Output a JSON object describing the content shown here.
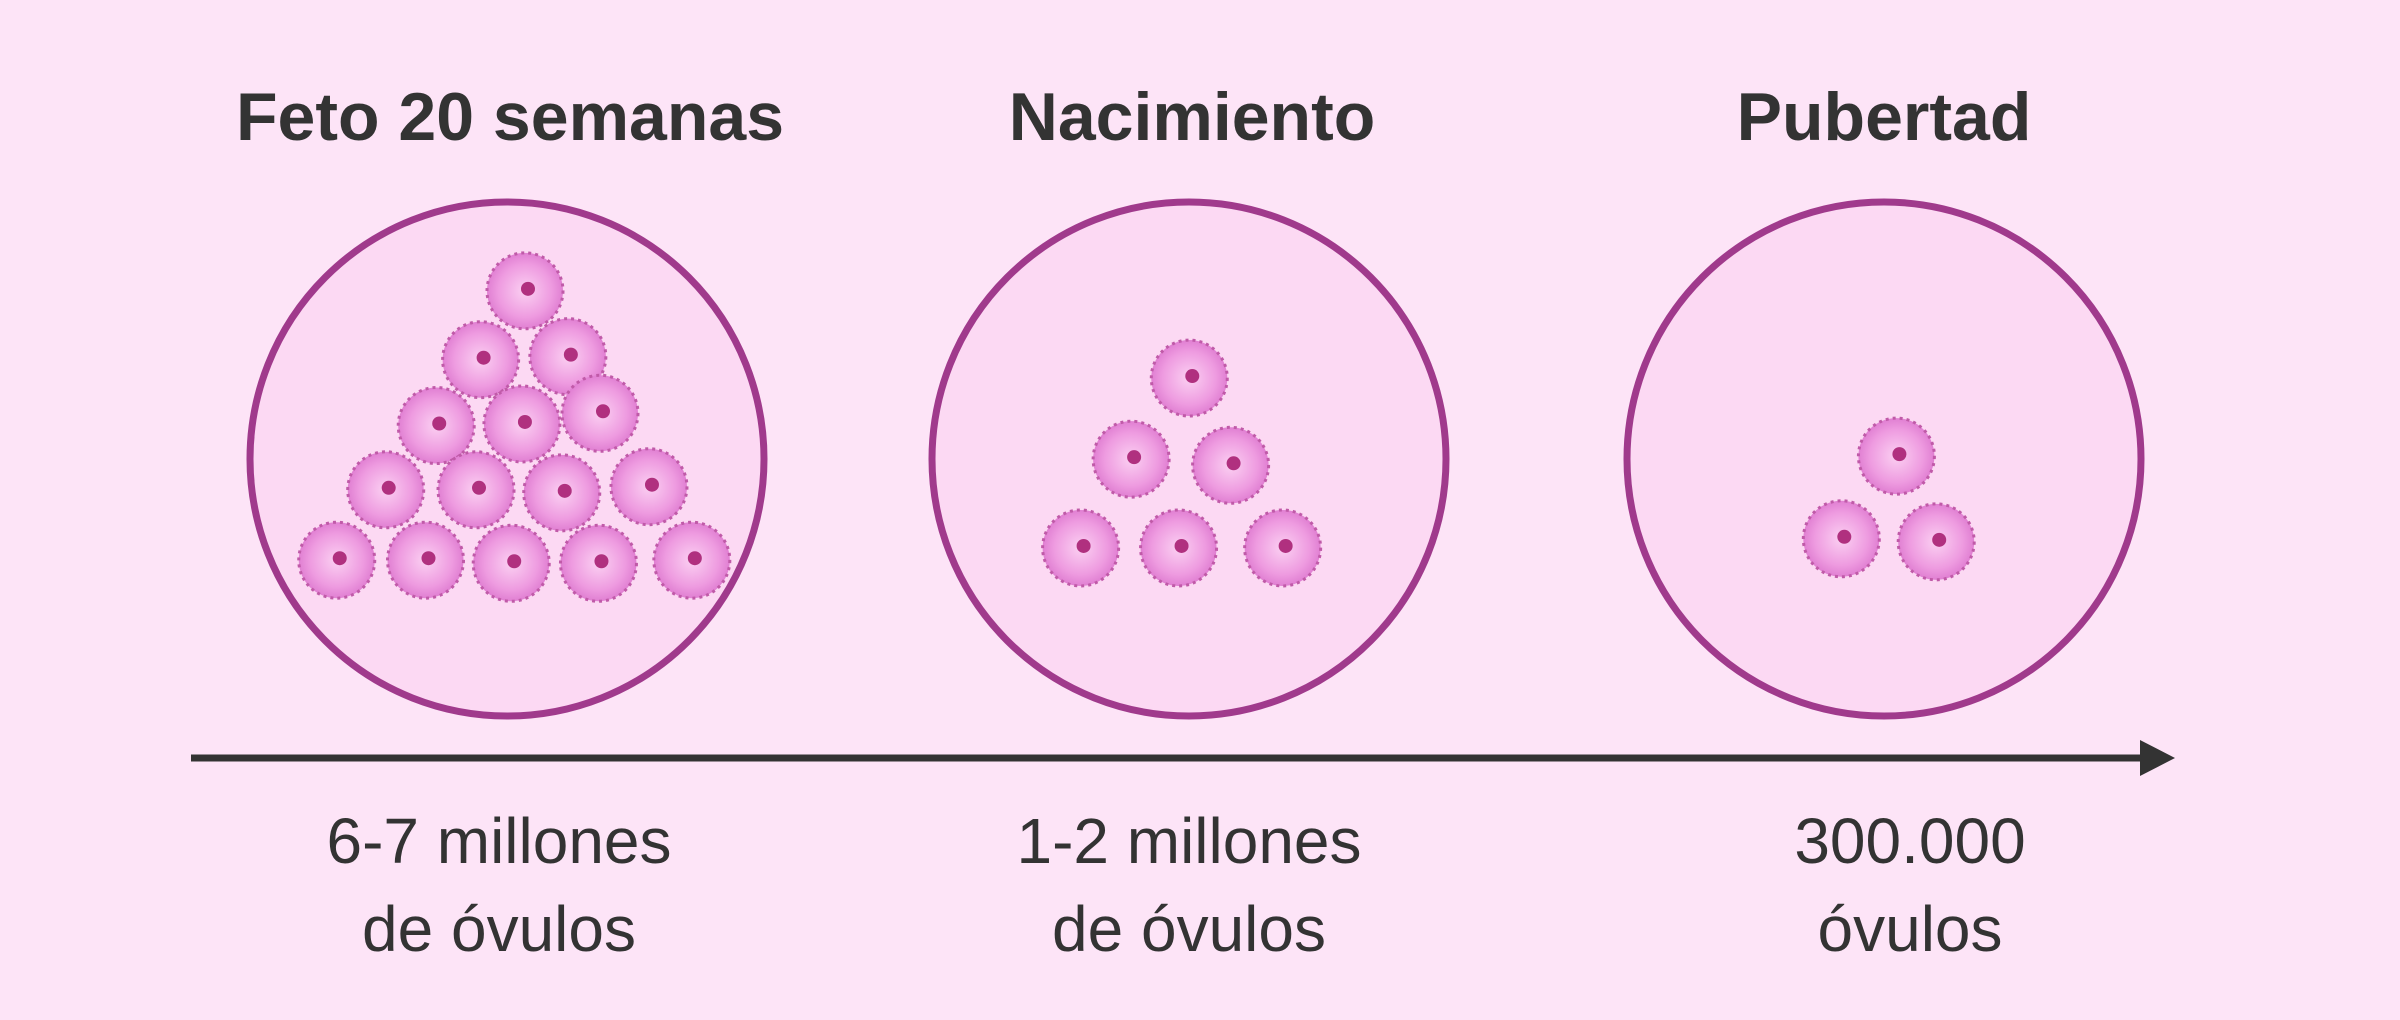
{
  "stages": [
    {
      "title": "Feto 20 semanas",
      "label": [
        "6-7 millones",
        "de óvulos"
      ]
    },
    {
      "title": "Nacimiento",
      "label": [
        "1-2 millones",
        "de óvulos"
      ]
    },
    {
      "title": "Pubertad",
      "label": [
        "300.000",
        "óvulos"
      ]
    }
  ]
}
